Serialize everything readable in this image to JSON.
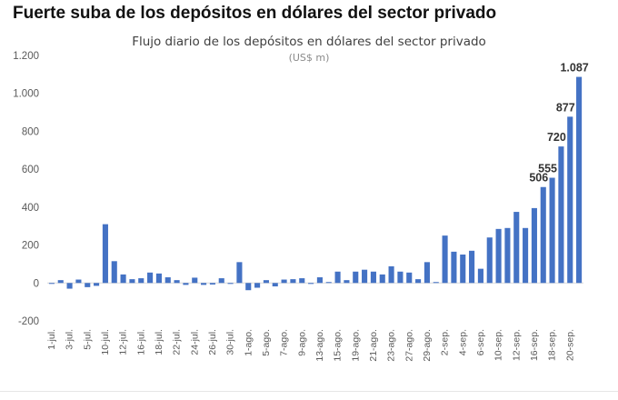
{
  "headline": "Fuerte suba de los depósitos en dólares del sector privado",
  "chart_data": {
    "type": "bar",
    "title": "Flujo diario de los depósitos en dólares del sector privado",
    "subtitle": "(US$ m)",
    "ylim": [
      -200,
      1200
    ],
    "y_ticks": [
      -200,
      0,
      200,
      400,
      600,
      800,
      1000,
      1200
    ],
    "y_tick_labels": [
      "-200",
      "0",
      "200",
      "400",
      "600",
      "800",
      "1.000",
      "1.200"
    ],
    "grid": false,
    "color": "#4472c4",
    "x_tick_labels": [
      "1-jul.",
      "3-jul.",
      "5-jul.",
      "10-jul.",
      "12-jul.",
      "16-jul.",
      "18-jul.",
      "22-jul.",
      "24-jul.",
      "26-jul.",
      "30-jul.",
      "1-ago.",
      "5-ago.",
      "7-ago.",
      "9-ago.",
      "13-ago.",
      "15-ago.",
      "19-ago.",
      "21-ago.",
      "23-ago.",
      "27-ago.",
      "29-ago.",
      "2-sep.",
      "4-sep.",
      "6-sep.",
      "10-sep.",
      "12-sep.",
      "16-sep.",
      "18-sep.",
      "20-sep."
    ],
    "series": [
      {
        "values": [
          -3,
          15,
          -30,
          18,
          -22,
          -15,
          310,
          115,
          45,
          20,
          25,
          55,
          50,
          30,
          15,
          -10,
          28,
          -10,
          -8,
          25,
          -5,
          110,
          -38,
          -25,
          15,
          -18,
          18,
          20,
          25,
          -5,
          30,
          5,
          60,
          15,
          60,
          70,
          60,
          45,
          88,
          60,
          55,
          20,
          110,
          5,
          250,
          165,
          150,
          170,
          75,
          240,
          285,
          290,
          375,
          290,
          395,
          506,
          555,
          720,
          877,
          1087
        ]
      }
    ],
    "data_labels": [
      {
        "index": 55,
        "text": "506"
      },
      {
        "index": 56,
        "text": "555"
      },
      {
        "index": 57,
        "text": "720"
      },
      {
        "index": 58,
        "text": "877"
      },
      {
        "index": 59,
        "text": "1.087"
      }
    ]
  }
}
